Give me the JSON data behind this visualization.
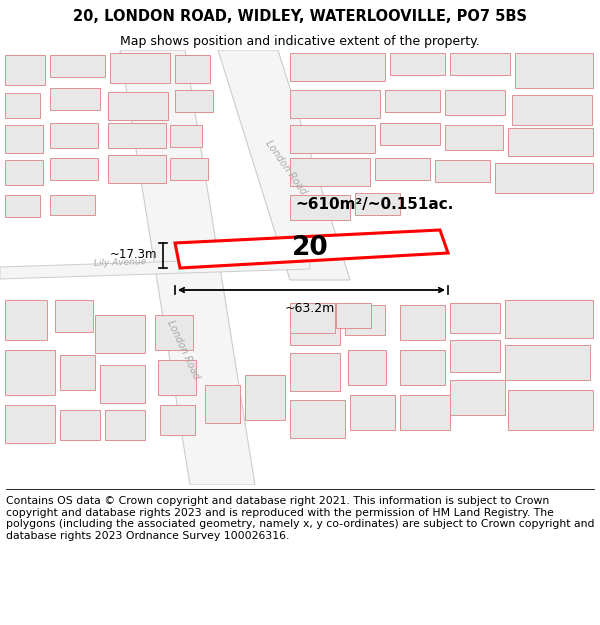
{
  "title": "20, LONDON ROAD, WIDLEY, WATERLOOVILLE, PO7 5BS",
  "subtitle": "Map shows position and indicative extent of the property.",
  "footer": "Contains OS data © Crown copyright and database right 2021. This information is subject to Crown copyright and database rights 2023 and is reproduced with the permission of HM Land Registry. The polygons (including the associated geometry, namely x, y co-ordinates) are subject to Crown copyright and database rights 2023 Ordnance Survey 100026316.",
  "map_bg": "#ffffff",
  "highlight_color": "#ff0000",
  "area_label": "~610m²/~0.151ac.",
  "plot_number": "20",
  "width_label": "~63.2m",
  "height_label": "~17.3m",
  "title_fontsize": 10.5,
  "subtitle_fontsize": 9,
  "footer_fontsize": 7.8,
  "building_fill": "#e8e8e8",
  "building_edge": "#e09090",
  "road_fill": "#ffffff",
  "road_edge": "#cccccc",
  "road_label_color": "#aaaaaa",
  "lily_label_color": "#aaaaaa"
}
